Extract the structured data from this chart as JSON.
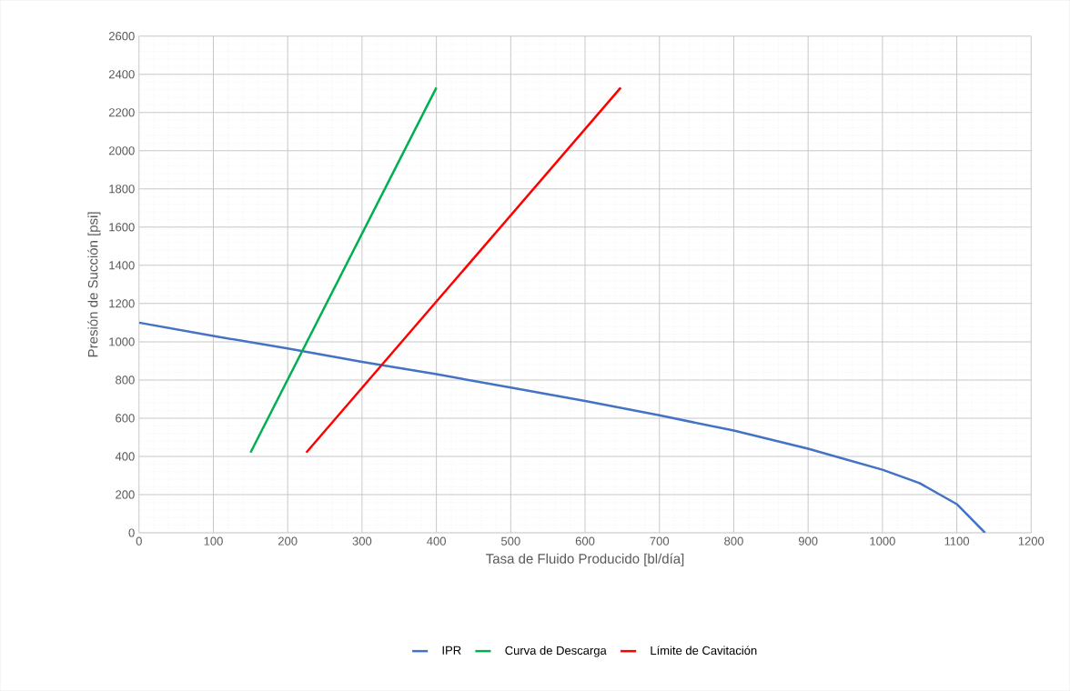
{
  "chart_data": {
    "type": "line",
    "xlabel": "Tasa de Fluido Producido [bl/día]",
    "ylabel": "Presión de Succión [psi]",
    "xlim": [
      0,
      1200
    ],
    "ylim": [
      0,
      2600
    ],
    "xticks": [
      0,
      100,
      200,
      300,
      400,
      500,
      600,
      700,
      800,
      900,
      1000,
      1100,
      1200
    ],
    "yticks": [
      0,
      200,
      400,
      600,
      800,
      1000,
      1200,
      1400,
      1600,
      1800,
      2000,
      2200,
      2400,
      2600
    ],
    "grid": true,
    "legend": "bottom",
    "marker": "none",
    "line_style": "solid",
    "series": [
      {
        "name": "IPR",
        "color": "#4472c4",
        "x": [
          0,
          100,
          200,
          300,
          400,
          500,
          600,
          700,
          800,
          900,
          1000,
          1050,
          1100,
          1138
        ],
        "values": [
          1100,
          1030,
          965,
          895,
          830,
          760,
          690,
          615,
          535,
          440,
          330,
          260,
          150,
          0
        ]
      },
      {
        "name": "Curva de Descarga",
        "color": "#00b050",
        "x": [
          150,
          400
        ],
        "values": [
          420,
          2330
        ]
      },
      {
        "name": "Límite de Cavitación",
        "color": "#ff0000",
        "x": [
          225,
          648
        ],
        "values": [
          420,
          2330
        ]
      }
    ]
  }
}
